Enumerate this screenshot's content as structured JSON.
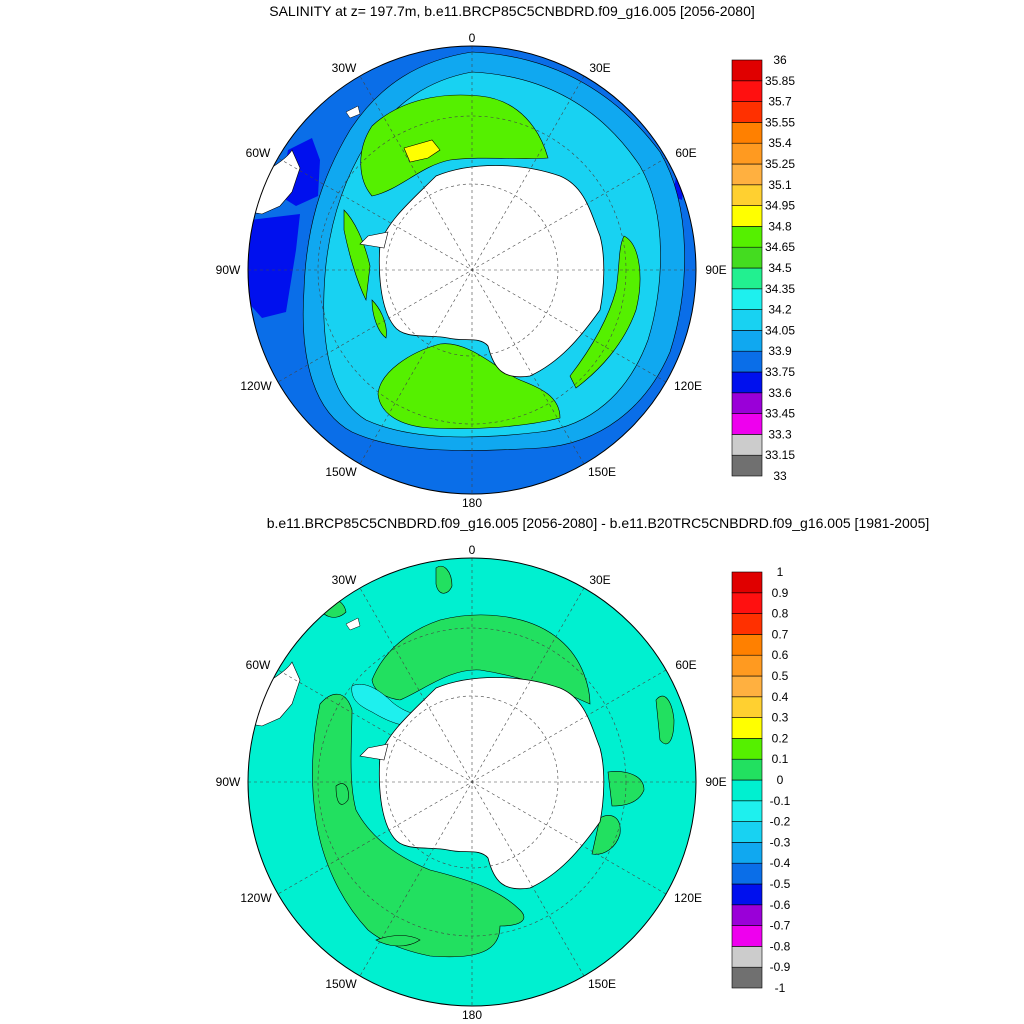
{
  "panels": [
    {
      "title": "SALINITY at z= 197.7m, b.e11.BRCP85C5CNBDRD.f09_g16.005 [2056-2080]",
      "lon_labels": [
        "0",
        "30E",
        "60E",
        "90E",
        "120E",
        "150E",
        "180",
        "150W",
        "120W",
        "90W",
        "60W",
        "30W"
      ],
      "colorbar": {
        "levels": [
          "33",
          "33.15",
          "33.3",
          "33.45",
          "33.6",
          "33.75",
          "33.9",
          "34.05",
          "34.2",
          "34.35",
          "34.5",
          "34.65",
          "34.8",
          "34.95",
          "35.1",
          "35.25",
          "35.4",
          "35.55",
          "35.7",
          "35.85",
          "36"
        ],
        "colors": [
          "#707070",
          "#cccccc",
          "#ee00ee",
          "#9a00d8",
          "#0010ee",
          "#0a6ee8",
          "#10a8f0",
          "#18d2f2",
          "#1ef0ee",
          "#22f090",
          "#44dc20",
          "#55f000",
          "#ffff00",
          "#ffd030",
          "#ffb040",
          "#ff9a20",
          "#ff8000",
          "#ff3000",
          "#ff1010",
          "#e00000"
        ]
      }
    },
    {
      "title": "b.e11.BRCP85C5CNBDRD.f09_g16.005 [2056-2080] - b.e11.B20TRC5CNBDRD.f09_g16.005 [1981-2005]",
      "lon_labels": [
        "0",
        "30E",
        "60E",
        "90E",
        "120E",
        "150E",
        "180",
        "150W",
        "120W",
        "90W",
        "60W",
        "30W"
      ],
      "colorbar": {
        "levels": [
          "-1",
          "-0.9",
          "-0.8",
          "-0.7",
          "-0.6",
          "-0.5",
          "-0.4",
          "-0.3",
          "-0.2",
          "-0.1",
          "0",
          "0.1",
          "0.2",
          "0.3",
          "0.4",
          "0.5",
          "0.6",
          "0.7",
          "0.8",
          "0.9",
          "1"
        ],
        "colors": [
          "#707070",
          "#cccccc",
          "#ee00ee",
          "#9a00d8",
          "#0010ee",
          "#0a6ee8",
          "#10a8f0",
          "#18d2f2",
          "#1ef0ee",
          "#00f0d0",
          "#22e060",
          "#55f000",
          "#ffff00",
          "#ffd030",
          "#ffb040",
          "#ff9a20",
          "#ff8000",
          "#ff3000",
          "#ff1010",
          "#e00000"
        ]
      }
    }
  ],
  "colors": {
    "top_ocean": "#0a6ee8",
    "top_inner": "#10a8f0",
    "top_shelf": "#18d2f2",
    "top_core": "#55f000",
    "top_max": "#ffff00",
    "top_fresh": "#0010ee",
    "bottom_ocean": "#00f0d0",
    "bottom_pos": "#22e060",
    "bottom_neg": "#1ef0ee",
    "land": "#ffffff"
  }
}
